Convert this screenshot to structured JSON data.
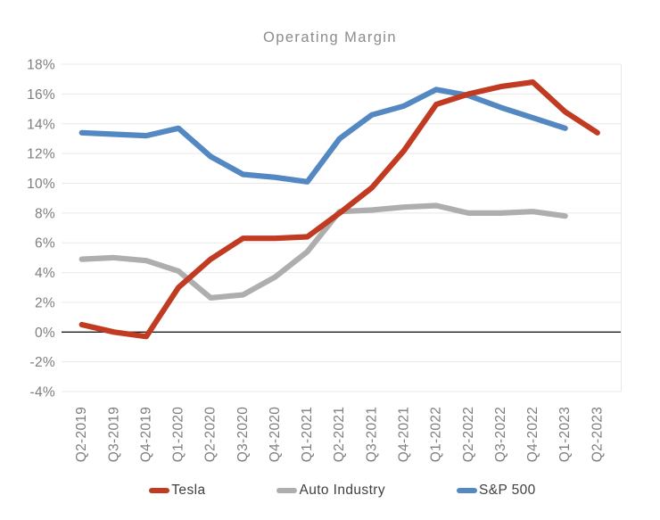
{
  "title": "Operating Margin",
  "legend": [
    {
      "label": "Tesla",
      "color": "#c13a22"
    },
    {
      "label": "Auto Industry",
      "color": "#aeaeae"
    },
    {
      "label": "S&P 500",
      "color": "#5488c2"
    }
  ],
  "chart_data": {
    "type": "line",
    "title": "Operating Margin",
    "categories": [
      "Q2-2019",
      "Q3-2019",
      "Q4-2019",
      "Q1-2020",
      "Q2-2020",
      "Q3-2020",
      "Q4-2020",
      "Q1-2021",
      "Q2-2021",
      "Q3-2021",
      "Q4-2021",
      "Q1-2022",
      "Q2-2022",
      "Q3-2022",
      "Q4-2022",
      "Q1-2023",
      "Q2-2023"
    ],
    "series": [
      {
        "name": "Tesla",
        "color": "#c13a22",
        "values": [
          0.5,
          0.0,
          -0.3,
          3.0,
          4.9,
          6.3,
          6.3,
          6.4,
          8.0,
          9.7,
          12.2,
          15.3,
          16.0,
          16.5,
          16.8,
          14.8,
          13.4
        ]
      },
      {
        "name": "Auto Industry",
        "color": "#aeaeae",
        "values": [
          4.9,
          5.0,
          4.8,
          4.1,
          2.3,
          2.5,
          3.7,
          5.4,
          8.1,
          8.2,
          8.4,
          8.5,
          8.0,
          8.0,
          8.1,
          7.8,
          null
        ]
      },
      {
        "name": "S&P 500",
        "color": "#5488c2",
        "values": [
          13.4,
          13.3,
          13.2,
          13.7,
          11.8,
          10.6,
          10.4,
          10.1,
          13.0,
          14.6,
          15.2,
          16.3,
          15.9,
          15.1,
          14.4,
          13.7,
          null
        ]
      }
    ],
    "y_ticks": [
      "18%",
      "16%",
      "14%",
      "12%",
      "10%",
      "8%",
      "6%",
      "4%",
      "2%",
      "0%",
      "-2%",
      "-4%"
    ],
    "ylim": [
      -4,
      18
    ],
    "grid": "horizontal",
    "legend_position": "bottom"
  }
}
